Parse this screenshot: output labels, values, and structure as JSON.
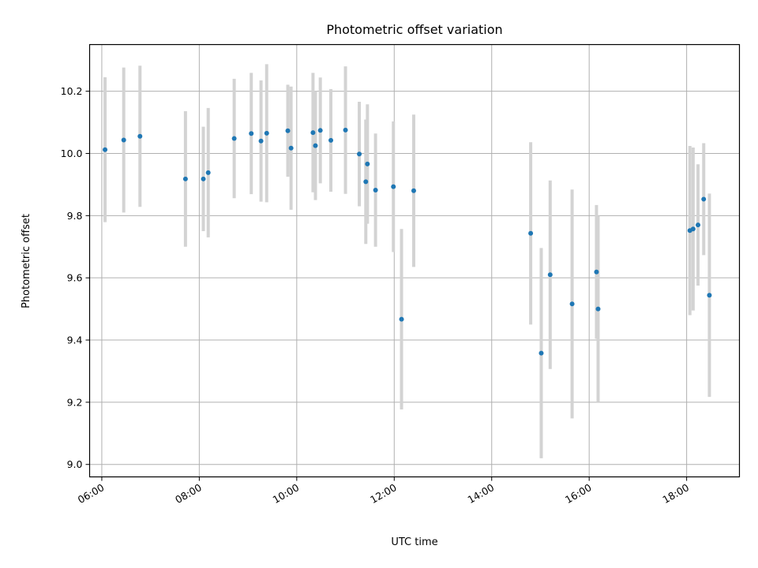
{
  "chart_data": {
    "type": "scatter",
    "title": "Photometric offset variation",
    "xlabel": "UTC time",
    "ylabel": "Photometric offset",
    "x_axis_type": "time",
    "xlim": [
      "05:45",
      "19:05"
    ],
    "ylim": [
      8.96,
      10.35
    ],
    "x_ticks": [
      "06:00",
      "08:00",
      "10:00",
      "12:00",
      "14:00",
      "16:00",
      "18:00"
    ],
    "y_ticks": [
      9.0,
      9.2,
      9.4,
      9.6,
      9.8,
      10.0,
      10.2
    ],
    "y_tick_labels": [
      "9.0",
      "9.2",
      "9.4",
      "9.6",
      "9.8",
      "10.0",
      "10.2"
    ],
    "grid": true,
    "legend": "none",
    "colors": {
      "point": "#1f77b4",
      "errorbar": "#d3d3d3",
      "grid": "#b0b0b0"
    },
    "points": [
      {
        "t": "06:04",
        "y": 10.012,
        "err": 0.233
      },
      {
        "t": "06:27",
        "y": 10.043,
        "err": 0.233
      },
      {
        "t": "06:47",
        "y": 10.055,
        "err": 0.227
      },
      {
        "t": "07:43",
        "y": 9.918,
        "err": 0.218
      },
      {
        "t": "08:05",
        "y": 9.918,
        "err": 0.168
      },
      {
        "t": "08:11",
        "y": 9.938,
        "err": 0.208
      },
      {
        "t": "08:43",
        "y": 10.048,
        "err": 0.192
      },
      {
        "t": "09:04",
        "y": 10.064,
        "err": 0.195
      },
      {
        "t": "09:16",
        "y": 10.04,
        "err": 0.195
      },
      {
        "t": "09:23",
        "y": 10.065,
        "err": 0.222
      },
      {
        "t": "09:49",
        "y": 10.073,
        "err": 0.148
      },
      {
        "t": "09:53",
        "y": 10.017,
        "err": 0.198
      },
      {
        "t": "10:20",
        "y": 10.067,
        "err": 0.192
      },
      {
        "t": "10:23",
        "y": 10.025,
        "err": 0.175
      },
      {
        "t": "10:29",
        "y": 10.074,
        "err": 0.17
      },
      {
        "t": "10:42",
        "y": 10.042,
        "err": 0.165
      },
      {
        "t": "11:00",
        "y": 10.075,
        "err": 0.205
      },
      {
        "t": "11:17",
        "y": 9.998,
        "err": 0.168
      },
      {
        "t": "11:25",
        "y": 9.909,
        "err": 0.2
      },
      {
        "t": "11:27",
        "y": 9.966,
        "err": 0.192
      },
      {
        "t": "11:37",
        "y": 9.882,
        "err": 0.182
      },
      {
        "t": "11:59",
        "y": 9.893,
        "err": 0.21
      },
      {
        "t": "12:09",
        "y": 9.467,
        "err": 0.29
      },
      {
        "t": "12:24",
        "y": 9.88,
        "err": 0.245
      },
      {
        "t": "14:48",
        "y": 9.743,
        "err": 0.293
      },
      {
        "t": "15:01",
        "y": 9.358,
        "err": 0.338
      },
      {
        "t": "15:12",
        "y": 9.61,
        "err": 0.303
      },
      {
        "t": "15:39",
        "y": 9.516,
        "err": 0.368
      },
      {
        "t": "16:09",
        "y": 9.619,
        "err": 0.215
      },
      {
        "t": "16:11",
        "y": 9.5,
        "err": 0.3
      },
      {
        "t": "18:04",
        "y": 9.752,
        "err": 0.272
      },
      {
        "t": "18:08",
        "y": 9.757,
        "err": 0.262
      },
      {
        "t": "18:14",
        "y": 9.77,
        "err": 0.195
      },
      {
        "t": "18:21",
        "y": 9.853,
        "err": 0.18
      },
      {
        "t": "18:28",
        "y": 9.544,
        "err": 0.327
      }
    ]
  }
}
